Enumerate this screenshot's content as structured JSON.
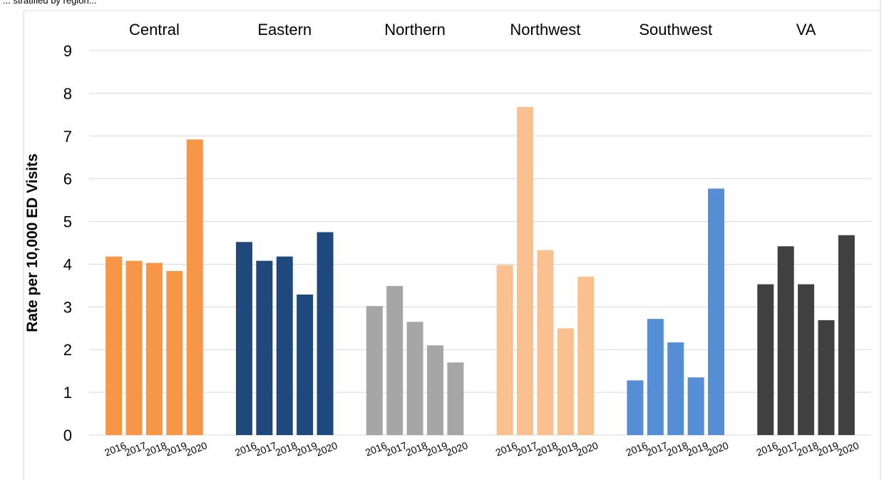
{
  "header_fragment": "... stratified by region...",
  "chart_data": {
    "type": "bar",
    "title": "",
    "xlabel": "",
    "ylabel": "Rate per 10,000 ED Visits",
    "ylim": [
      0,
      9
    ],
    "yticks": [
      0,
      1,
      2,
      3,
      4,
      5,
      6,
      7,
      8,
      9
    ],
    "grid": true,
    "categories": [
      "2016",
      "2017",
      "2018",
      "2019",
      "2020"
    ],
    "panels": [
      {
        "name": "Central",
        "color": "#f79646",
        "values": [
          4.18,
          4.08,
          4.03,
          3.84,
          6.92
        ]
      },
      {
        "name": "Eastern",
        "color": "#1f497d",
        "values": [
          4.52,
          4.08,
          4.18,
          3.29,
          4.75
        ]
      },
      {
        "name": "Northern",
        "color": "#a6a6a6",
        "values": [
          3.02,
          3.49,
          2.65,
          2.1,
          1.7
        ]
      },
      {
        "name": "Northwest",
        "color": "#fac090",
        "values": [
          3.98,
          7.68,
          4.33,
          2.5,
          3.71
        ]
      },
      {
        "name": "Southwest",
        "color": "#558ed5",
        "values": [
          1.28,
          2.72,
          2.17,
          1.35,
          5.77
        ]
      },
      {
        "name": "VA",
        "color": "#404040",
        "values": [
          3.53,
          4.42,
          3.53,
          2.69,
          4.68
        ]
      }
    ]
  }
}
